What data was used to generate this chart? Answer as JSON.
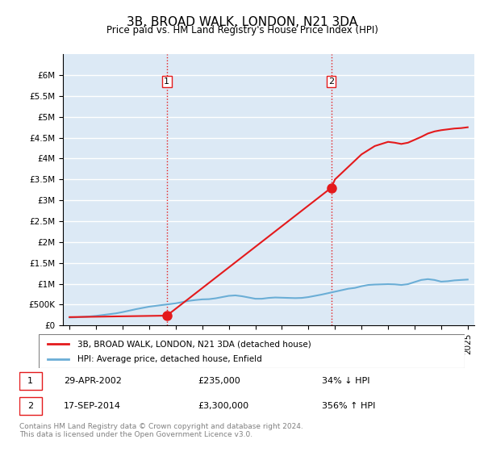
{
  "title": "3B, BROAD WALK, LONDON, N21 3DA",
  "subtitle": "Price paid vs. HM Land Registry's House Price Index (HPI)",
  "title_fontsize": 12,
  "subtitle_fontsize": 10,
  "xlim": [
    1994.5,
    2025.5
  ],
  "ylim": [
    0,
    6500000
  ],
  "yticks": [
    0,
    500000,
    1000000,
    1500000,
    2000000,
    2500000,
    3000000,
    3500000,
    4000000,
    4500000,
    5000000,
    5500000,
    6000000
  ],
  "ytick_labels": [
    "£0",
    "£500K",
    "£1M",
    "£1.5M",
    "£2M",
    "£2.5M",
    "£3M",
    "£3.5M",
    "£4M",
    "£4.5M",
    "£5M",
    "£5.5M",
    "£6M"
  ],
  "background_color": "#dce9f5",
  "plot_bg_color": "#dce9f5",
  "grid_color": "#ffffff",
  "hpi_line_color": "#6baed6",
  "price_line_color": "#e41a1c",
  "sale1_x": 2002.33,
  "sale1_y": 235000,
  "sale2_x": 2014.72,
  "sale2_y": 3300000,
  "vline_color": "#e41a1c",
  "vline_style": ":",
  "marker_color": "#e41a1c",
  "marker_size": 8,
  "legend_label_red": "3B, BROAD WALK, LONDON, N21 3DA (detached house)",
  "legend_label_blue": "HPI: Average price, detached house, Enfield",
  "table_data": [
    {
      "num": "1",
      "date": "29-APR-2002",
      "price": "£235,000",
      "hpi": "34% ↓ HPI"
    },
    {
      "num": "2",
      "date": "17-SEP-2014",
      "price": "£3,300,000",
      "hpi": "356% ↑ HPI"
    }
  ],
  "footer": "Contains HM Land Registry data © Crown copyright and database right 2024.\nThis data is licensed under the Open Government Licence v3.0.",
  "hpi_x": [
    1995,
    1995.5,
    1996,
    1996.5,
    1997,
    1997.5,
    1998,
    1998.5,
    1999,
    1999.5,
    2000,
    2000.5,
    2001,
    2001.5,
    2002,
    2002.5,
    2003,
    2003.5,
    2004,
    2004.5,
    2005,
    2005.5,
    2006,
    2006.5,
    2007,
    2007.5,
    2008,
    2008.5,
    2009,
    2009.5,
    2010,
    2010.5,
    2011,
    2011.5,
    2012,
    2012.5,
    2013,
    2013.5,
    2014,
    2014.5,
    2015,
    2015.5,
    2016,
    2016.5,
    2017,
    2017.5,
    2018,
    2018.5,
    2019,
    2019.5,
    2020,
    2020.5,
    2021,
    2021.5,
    2022,
    2022.5,
    2023,
    2023.5,
    2024,
    2024.5,
    2025
  ],
  "hpi_y": [
    190000,
    195000,
    205000,
    215000,
    230000,
    250000,
    270000,
    290000,
    320000,
    355000,
    390000,
    420000,
    450000,
    470000,
    490000,
    510000,
    530000,
    560000,
    590000,
    610000,
    625000,
    630000,
    650000,
    680000,
    710000,
    720000,
    700000,
    670000,
    640000,
    640000,
    660000,
    670000,
    665000,
    660000,
    655000,
    660000,
    680000,
    710000,
    740000,
    775000,
    810000,
    845000,
    880000,
    900000,
    940000,
    970000,
    980000,
    985000,
    990000,
    985000,
    970000,
    990000,
    1040000,
    1090000,
    1110000,
    1090000,
    1050000,
    1060000,
    1080000,
    1090000,
    1100000
  ],
  "price_paid_x": [
    1995,
    2002.33,
    2014.72,
    2015,
    2015.5,
    2016,
    2016.5,
    2017,
    2017.5,
    2018,
    2018.5,
    2019,
    2019.5,
    2020,
    2020.5,
    2021,
    2021.5,
    2022,
    2022.5,
    2023,
    2023.5,
    2024,
    2024.5,
    2025
  ],
  "price_paid_y": [
    200000,
    235000,
    3300000,
    3500000,
    3650000,
    3800000,
    3950000,
    4100000,
    4200000,
    4300000,
    4350000,
    4400000,
    4380000,
    4350000,
    4380000,
    4450000,
    4520000,
    4600000,
    4650000,
    4680000,
    4700000,
    4720000,
    4730000,
    4750000
  ]
}
